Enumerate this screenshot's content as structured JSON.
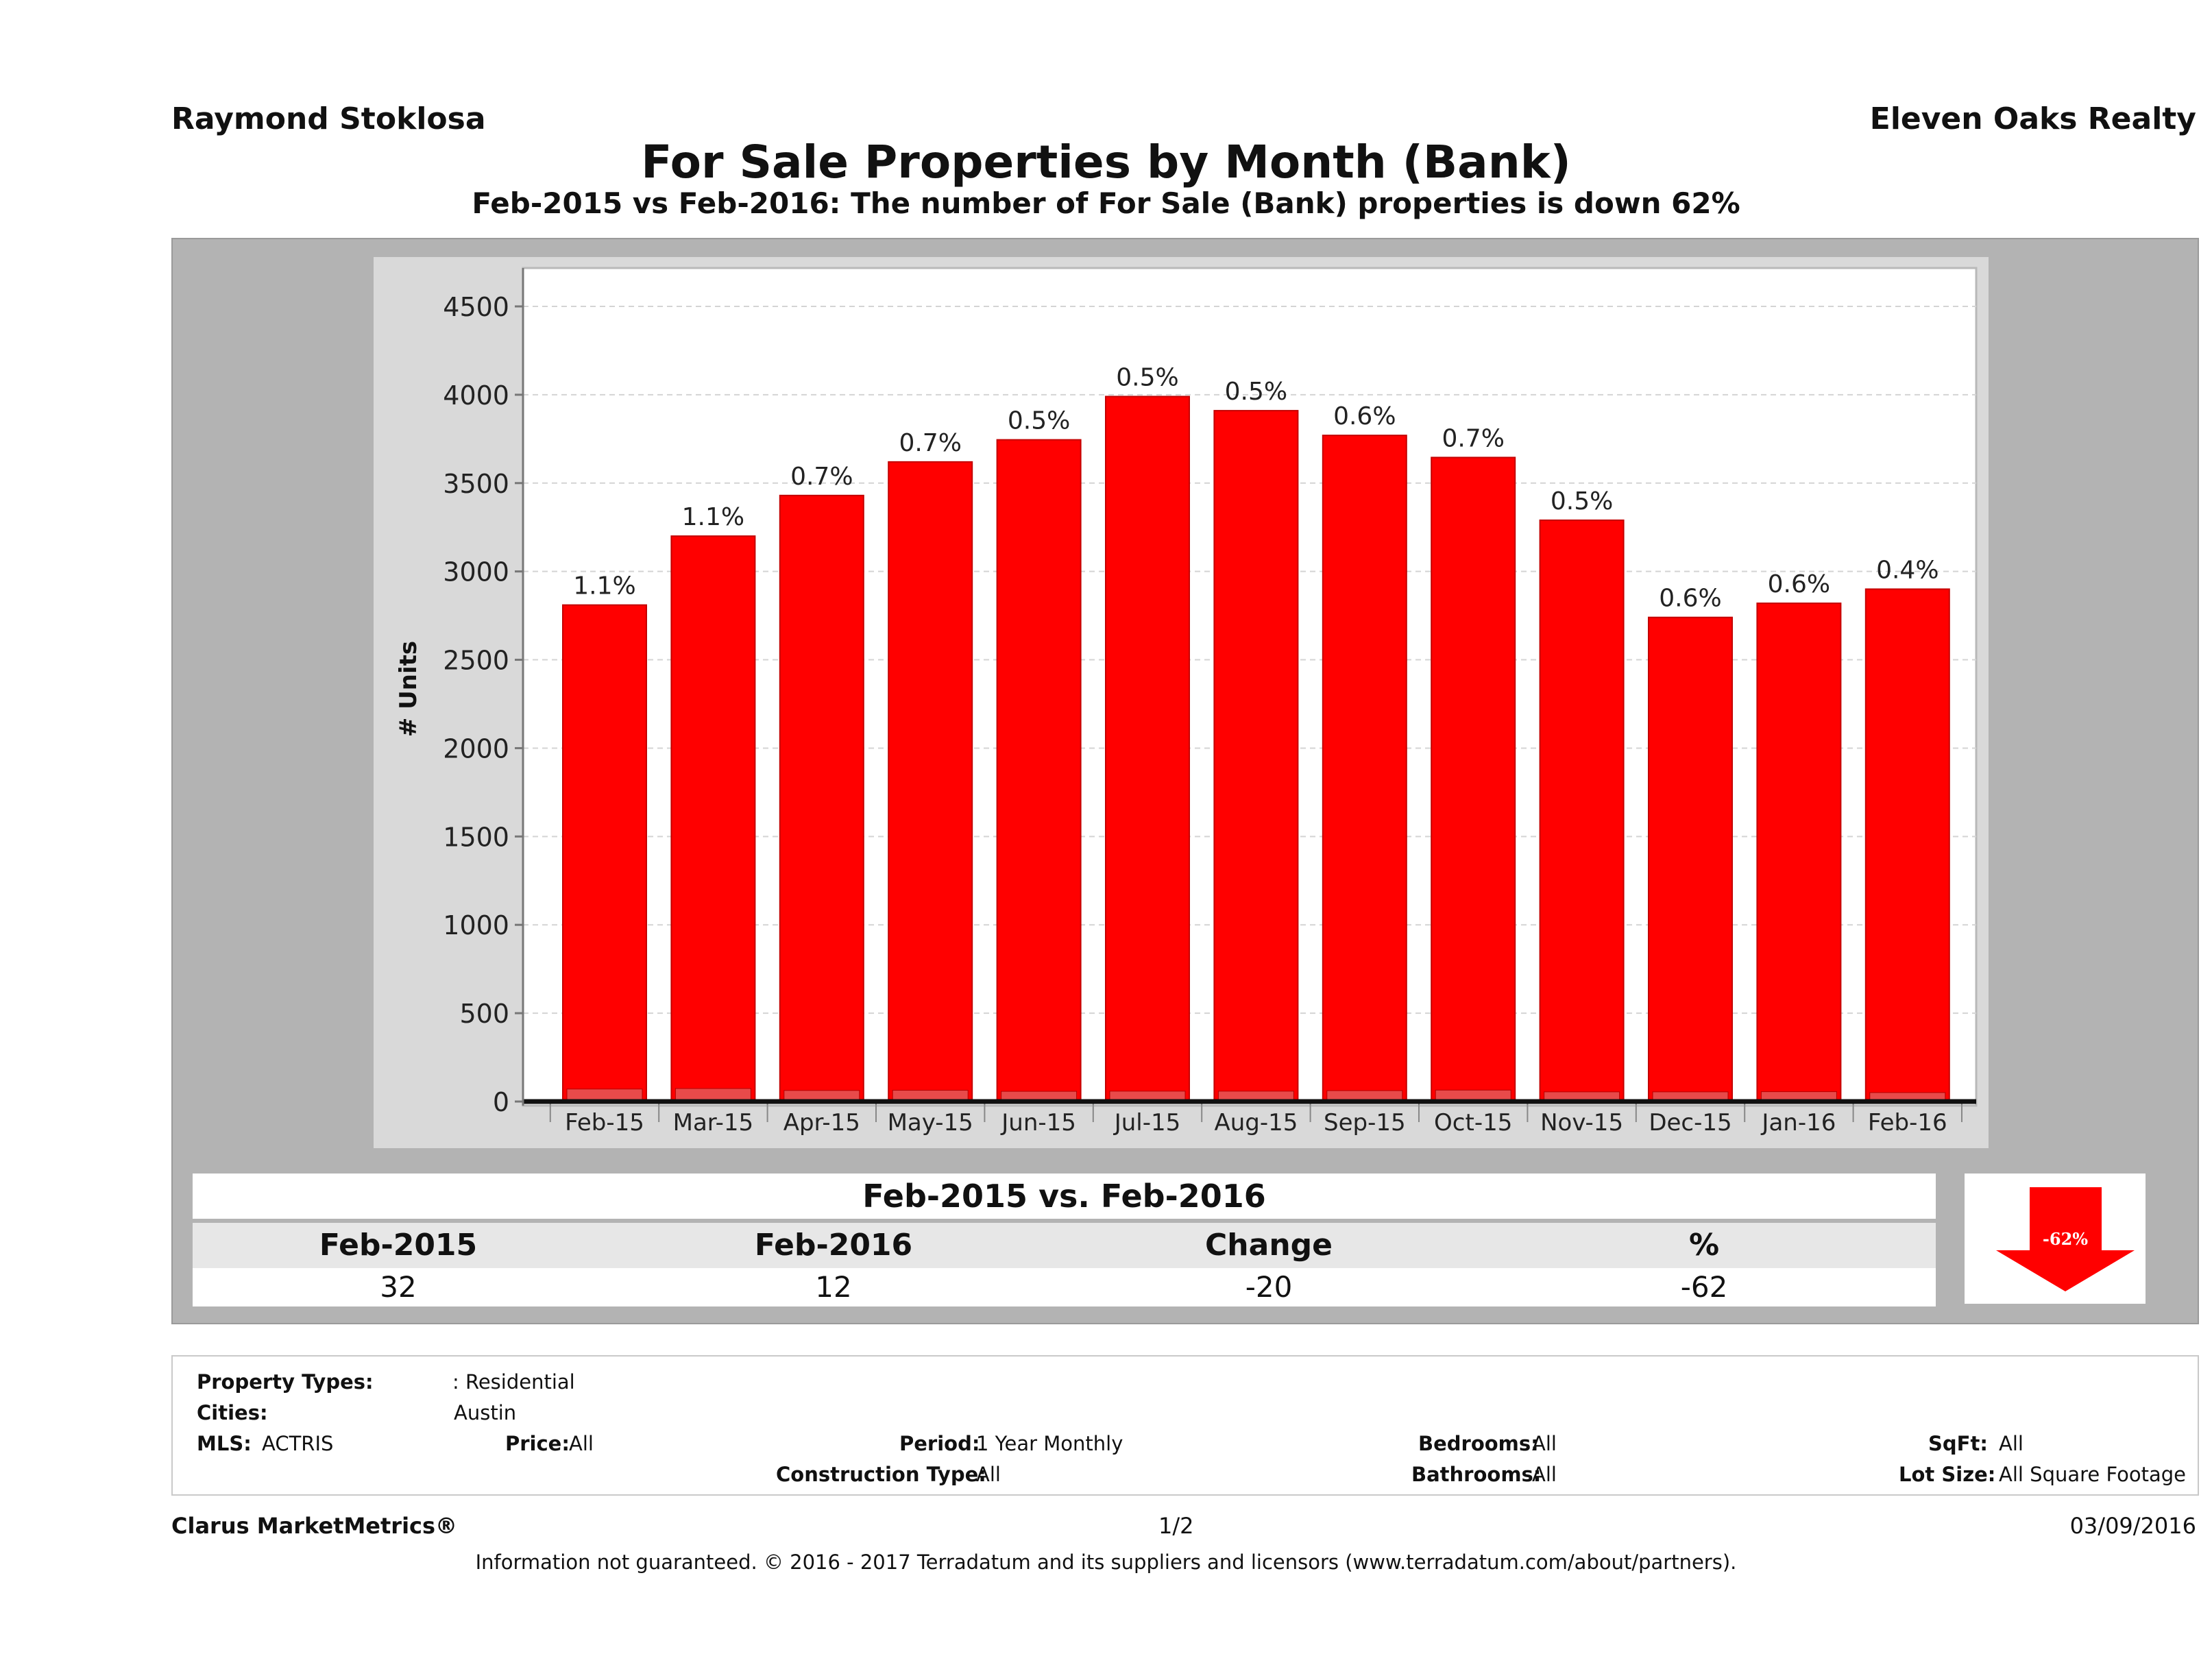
{
  "header": {
    "agent": "Raymond Stoklosa",
    "company": "Eleven Oaks Realty",
    "title": "For Sale Properties by Month (Bank)",
    "subtitle": "Feb-2015 vs Feb-2016: The number of For Sale (Bank)  properties is down 62%"
  },
  "chart_data": {
    "type": "bar",
    "categories": [
      "Feb-15",
      "Mar-15",
      "Apr-15",
      "May-15",
      "Jun-15",
      "Jul-15",
      "Aug-15",
      "Sep-15",
      "Oct-15",
      "Nov-15",
      "Dec-15",
      "Jan-16",
      "Feb-16"
    ],
    "values": [
      2810,
      3200,
      3430,
      3620,
      3745,
      3990,
      3910,
      3770,
      3645,
      3290,
      2740,
      2820,
      2900
    ],
    "bank_values": [
      32,
      35,
      24,
      25,
      19,
      20,
      20,
      23,
      26,
      16,
      16,
      17,
      12
    ],
    "data_labels": [
      "1.1%",
      "1.1%",
      "0.7%",
      "0.7%",
      "0.5%",
      "0.5%",
      "0.5%",
      "0.6%",
      "0.7%",
      "0.5%",
      "0.6%",
      "0.6%",
      "0.4%"
    ],
    "ylabel": "# Units",
    "xlabel": "",
    "ylim": [
      0,
      4700
    ],
    "yticks": [
      "0",
      "500",
      "1000",
      "1500",
      "2000",
      "2500",
      "3000",
      "3500",
      "4000",
      "4500"
    ],
    "ytick_values": [
      0,
      500,
      1000,
      1500,
      2000,
      2500,
      3000,
      3500,
      4000,
      4500
    ],
    "grid": true,
    "bar_color": "#ff0000"
  },
  "summary": {
    "title": "Feb-2015 vs. Feb-2016",
    "headers": [
      "Feb-2015",
      "Feb-2016",
      "Change",
      "%"
    ],
    "values": [
      "32",
      "12",
      "-20",
      "-62"
    ],
    "badge": "-62%",
    "badge_color": "#ff0000"
  },
  "filters": {
    "property_types_label": "Property Types:",
    "property_types_value": ": Residential",
    "cities_label": "Cities:",
    "cities_value": "Austin",
    "mls_label": "MLS:",
    "mls_value": "ACTRIS",
    "price_label": "Price:",
    "price_value": "All",
    "period_label": "Period:",
    "period_value": "1 Year Monthly",
    "construction_label": "Construction Type:",
    "construction_value": "All",
    "bedrooms_label": "Bedrooms:",
    "bedrooms_value": "All",
    "bathrooms_label": "Bathrooms:",
    "bathrooms_value": "All",
    "sqft_label": "SqFt:",
    "sqft_value": "All",
    "lotsize_label": "Lot Size:",
    "lotsize_value": "All Square Footage"
  },
  "footer": {
    "brand": "Clarus MarketMetrics®",
    "page": "1/2",
    "date": "03/09/2016",
    "disclaimer": "Information not guaranteed. © 2016 - 2017 Terradatum and its suppliers and licensors (www.terradatum.com/about/partners)."
  }
}
